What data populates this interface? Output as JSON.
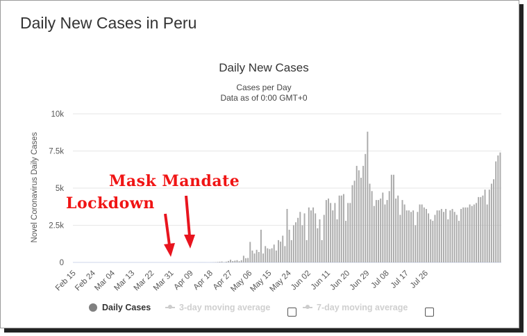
{
  "page_title": "Daily New Cases in Peru",
  "chart_data": {
    "type": "bar",
    "title": "Daily New Cases",
    "subtitle_lines": [
      "Cases per Day",
      "Data as of 0:00 GMT+0"
    ],
    "ylabel": "Novel Coronavirus Daily Cases",
    "ylim": [
      0,
      10000
    ],
    "ytick_values": [
      0,
      2500,
      5000,
      7500,
      10000
    ],
    "ytick_labels": [
      "0",
      "2.5k",
      "5k",
      "7.5k",
      "10k"
    ],
    "xtick_labels": [
      "Feb 15",
      "Feb 24",
      "Mar 04",
      "Mar 13",
      "Mar 22",
      "Mar 31",
      "Apr 09",
      "Apr 18",
      "Apr 27",
      "May 06",
      "May 15",
      "May 24",
      "Jun 02",
      "Jun 11",
      "Jun 20",
      "Jun 29",
      "Jul 08",
      "Jul 17",
      "Jul 26"
    ],
    "xtick_every": 9,
    "grid": true,
    "bar_color": "#aaaaaa",
    "series": [
      {
        "name": "Daily Cases",
        "values": [
          0,
          0,
          0,
          0,
          0,
          0,
          0,
          0,
          0,
          0,
          0,
          0,
          0,
          0,
          0,
          0,
          0,
          0,
          0,
          0,
          0,
          0,
          0,
          0,
          0,
          0,
          0,
          0,
          0,
          0,
          0,
          0,
          0,
          0,
          0,
          0,
          0,
          0,
          0,
          0,
          0,
          0,
          0,
          0,
          0,
          0,
          0,
          0,
          0,
          0,
          0,
          0,
          0,
          0,
          0,
          0,
          0,
          1,
          2,
          3,
          3,
          0,
          0,
          5,
          10,
          17,
          28,
          45,
          60,
          20,
          50,
          100,
          180,
          90,
          120,
          150,
          80,
          150,
          450,
          280,
          300,
          1380,
          800,
          600,
          850,
          700,
          2200,
          600,
          1100,
          950,
          900,
          950,
          1200,
          800,
          1500,
          1400,
          1800,
          1100,
          3600,
          2200,
          1500,
          2500,
          2700,
          3000,
          3400,
          2500,
          3300,
          1500,
          3700,
          3500,
          3700,
          3300,
          2300,
          2900,
          1500,
          3200,
          4200,
          4300,
          4000,
          3500,
          4000,
          2900,
          4500,
          4500,
          4600,
          2800,
          4000,
          4000,
          5200,
          5500,
          6500,
          6200,
          5700,
          6500,
          7300,
          8800,
          5300,
          4800,
          3800,
          4200,
          4200,
          4300,
          4700,
          3900,
          4200,
          4800,
          5900,
          5900,
          4300,
          4500,
          3200,
          4200,
          3900,
          3500,
          3500,
          3400,
          3500,
          2500,
          3400,
          3900,
          3900,
          3700,
          3600,
          3300,
          2900,
          2800,
          3200,
          3500,
          3500,
          3600,
          3400,
          3600,
          2900,
          3500,
          3600,
          3400,
          3200,
          2800,
          3600,
          3700,
          3700,
          3700,
          3900,
          3800,
          3900,
          4000,
          4400,
          4400,
          4500,
          4900,
          3900,
          4900,
          5300,
          5600,
          6800,
          7200,
          7400
        ]
      },
      {
        "name": "3-day moving average",
        "visible": false
      },
      {
        "name": "7-day moving average",
        "visible": false
      }
    ],
    "annotations": [
      "Mask Mandate",
      "Lockdown"
    ]
  }
}
